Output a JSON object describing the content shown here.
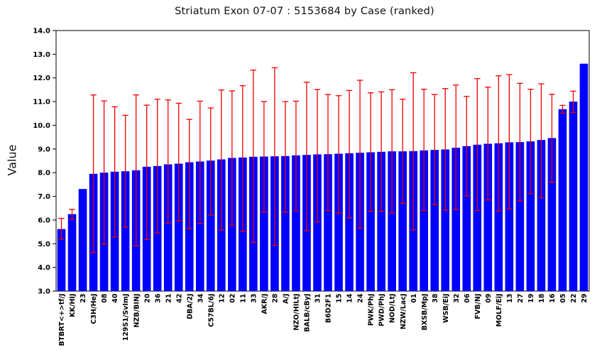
{
  "page": {
    "background": "#ffffff"
  },
  "chart_data": {
    "type": "bar",
    "title": "Striatum Exon 07-07 : 5153684 by Case (ranked)",
    "ylabel": "Value",
    "xlabel": "",
    "ylim": [
      3.0,
      14.0
    ],
    "ytick_step": 1.0,
    "ytick_labels": [
      "3.0",
      "4.0",
      "5.0",
      "6.0",
      "7.0",
      "8.0",
      "9.0",
      "10.0",
      "11.0",
      "12.0",
      "13.0",
      "14.0"
    ],
    "grid": false,
    "legend": null,
    "bar_color": "#0000ff",
    "error_color": "#ee0000",
    "axis_color": "#000000",
    "categories": [
      "BTBRT<+>tf/J",
      "KK/HIJ",
      "23",
      "C3H/HeJ",
      "08",
      "40",
      "129S1/SvImJ",
      "NZB/BINJ",
      "20",
      "36",
      "21",
      "42",
      "DBA/2J",
      "34",
      "C57BL/6J",
      "12",
      "02",
      "11",
      "33",
      "AKR/J",
      "28",
      "A/J",
      "NZO/HILtJ",
      "BALB/cByJ",
      "31",
      "B6D2F1",
      "15",
      "14",
      "24",
      "PWK/PhJ",
      "PWD/PhJ",
      "NOD/LtJ",
      "NZW/LacJ",
      "01",
      "BXSB/MpJ",
      "38",
      "WSB/EiJ",
      "32",
      "06",
      "FVB/NJ",
      "09",
      "MOLF/EiJ",
      "13",
      "27",
      "19",
      "18",
      "16",
      "05",
      "22",
      "29"
    ],
    "values": [
      5.62,
      6.25,
      7.31,
      7.95,
      8.0,
      8.04,
      8.06,
      8.1,
      8.25,
      8.28,
      8.35,
      8.38,
      8.44,
      8.47,
      8.51,
      8.56,
      8.62,
      8.64,
      8.67,
      8.68,
      8.69,
      8.7,
      8.73,
      8.75,
      8.77,
      8.78,
      8.8,
      8.82,
      8.84,
      8.86,
      8.88,
      8.9,
      8.9,
      8.91,
      8.94,
      8.96,
      8.98,
      9.05,
      9.12,
      9.18,
      9.22,
      9.24,
      9.28,
      9.29,
      9.32,
      9.38,
      9.46,
      10.68,
      11.0,
      12.6
    ],
    "error_low": [
      5.2,
      6.03,
      null,
      4.63,
      4.97,
      5.28,
      5.7,
      4.91,
      5.18,
      5.45,
      5.87,
      5.97,
      5.64,
      5.85,
      6.21,
      5.58,
      5.78,
      5.52,
      5.06,
      6.34,
      4.93,
      6.34,
      6.39,
      5.55,
      5.92,
      6.4,
      6.29,
      6.09,
      5.65,
      6.36,
      6.36,
      6.3,
      6.7,
      5.58,
      6.4,
      6.65,
      6.42,
      6.44,
      7.02,
      6.4,
      6.85,
      6.38,
      6.47,
      6.8,
      7.11,
      6.94,
      7.59,
      10.51,
      10.54,
      null
    ],
    "error_high": [
      6.07,
      6.45,
      null,
      11.28,
      11.03,
      10.78,
      10.42,
      11.28,
      10.85,
      11.1,
      11.07,
      10.93,
      10.25,
      11.02,
      10.73,
      11.49,
      11.45,
      11.67,
      12.33,
      11.0,
      12.43,
      11.0,
      11.02,
      11.82,
      11.51,
      11.3,
      11.25,
      11.47,
      11.9,
      11.37,
      11.41,
      11.5,
      11.1,
      12.22,
      11.52,
      11.3,
      11.55,
      11.7,
      11.22,
      11.97,
      11.61,
      12.09,
      12.14,
      11.77,
      11.52,
      11.75,
      11.31,
      10.84,
      11.44,
      null
    ]
  }
}
